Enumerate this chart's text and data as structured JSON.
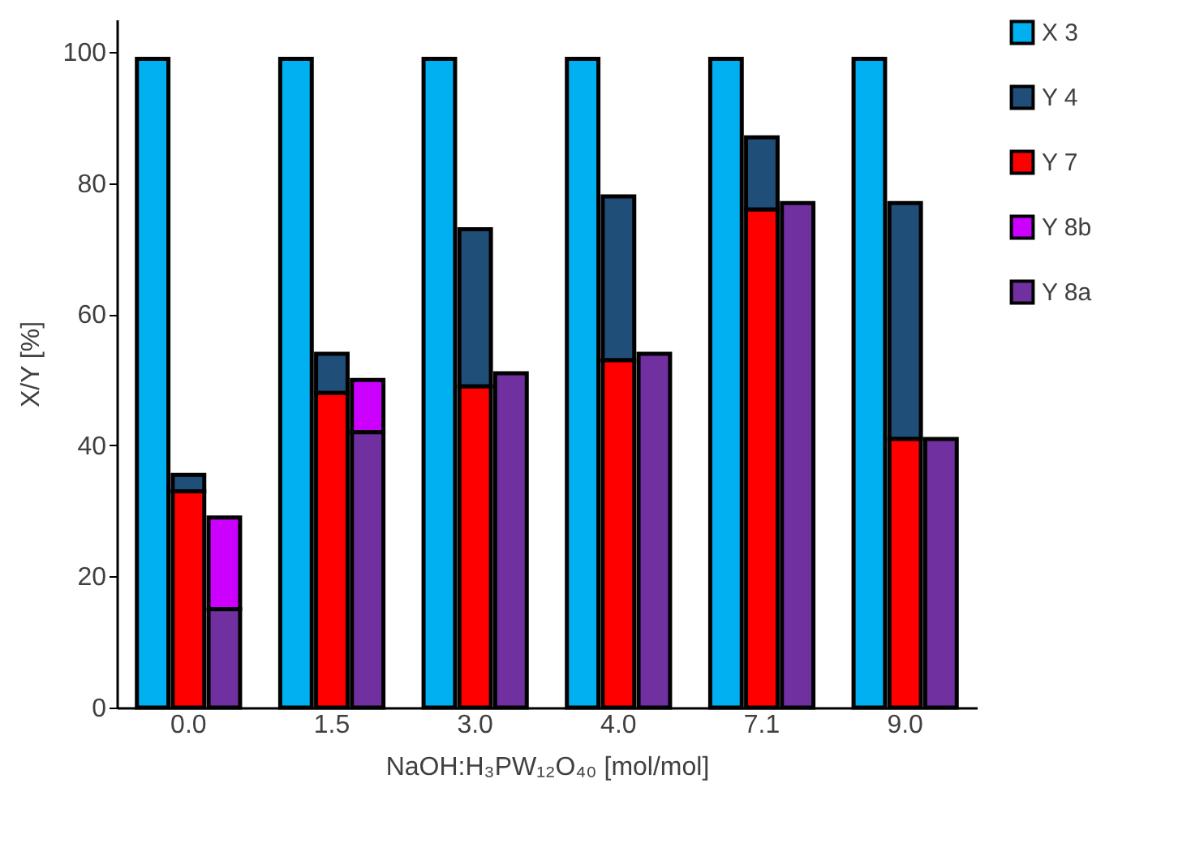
{
  "chart_data": {
    "type": "bar",
    "xlabel": "NaOH:H₃PW₁₂O₄₀ [mol/mol]",
    "ylabel": "X/Y [%]",
    "categories": [
      "0.0",
      "1.5",
      "3.0",
      "4.0",
      "7.1",
      "9.0"
    ],
    "series": [
      {
        "name": "X 3",
        "color": "#00b0f0",
        "values": [
          99,
          99,
          99,
          99,
          99,
          99
        ]
      },
      {
        "name": "Y 4",
        "color": "#1f4e79",
        "values": [
          2.5,
          6,
          24,
          25,
          11,
          36
        ],
        "base": [
          33,
          48,
          49,
          53,
          76,
          41
        ]
      },
      {
        "name": "Y 7",
        "color": "#ff0000",
        "values": [
          33,
          48,
          49,
          53,
          76,
          41
        ]
      },
      {
        "name": "Y 8b",
        "color": "#cc00ff",
        "values": [
          14,
          8,
          null,
          null,
          null,
          null
        ],
        "base": [
          15,
          42,
          null,
          null,
          null,
          null
        ]
      },
      {
        "name": "Y 8a",
        "color": "#7030a0",
        "values": [
          15,
          42,
          51,
          54,
          77,
          41
        ]
      }
    ],
    "ylim": [
      0,
      105
    ],
    "yticks": [
      0,
      20,
      40,
      60,
      80,
      100
    ],
    "grid": false,
    "legend": "right"
  }
}
